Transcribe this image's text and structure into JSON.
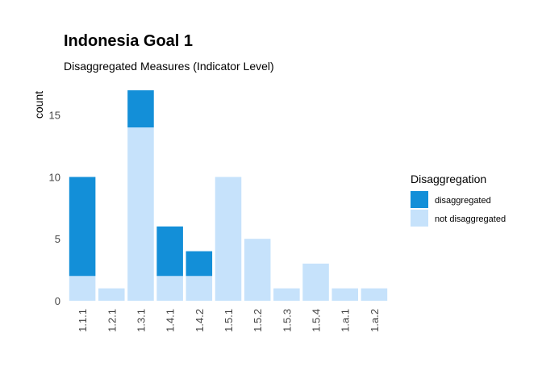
{
  "chart_data": {
    "type": "bar",
    "stacked": true,
    "title": "Indonesia Goal  1",
    "subtitle": "Disaggregated Measures (Indicator Level)",
    "xlabel": "",
    "ylabel": "count",
    "ylim": [
      0,
      17
    ],
    "yticks": [
      0,
      5,
      10,
      15
    ],
    "grid": false,
    "legend": {
      "title": "Disaggregation",
      "position": "right"
    },
    "categories": [
      "1.1.1",
      "1.2.1",
      "1.3.1",
      "1.4.1",
      "1.4.2",
      "1.5.1",
      "1.5.2",
      "1.5.3",
      "1.5.4",
      "1.a.1",
      "1.a.2"
    ],
    "series": [
      {
        "name": "not disaggregated",
        "color": "#c6e2fb",
        "values": [
          2,
          1,
          14,
          2,
          2,
          10,
          5,
          1,
          3,
          1,
          1
        ]
      },
      {
        "name": "disaggregated",
        "color": "#138fd8",
        "values": [
          8,
          0,
          3,
          4,
          2,
          0,
          0,
          0,
          0,
          0,
          0
        ]
      }
    ],
    "legend_order": [
      "disaggregated",
      "not disaggregated"
    ]
  }
}
